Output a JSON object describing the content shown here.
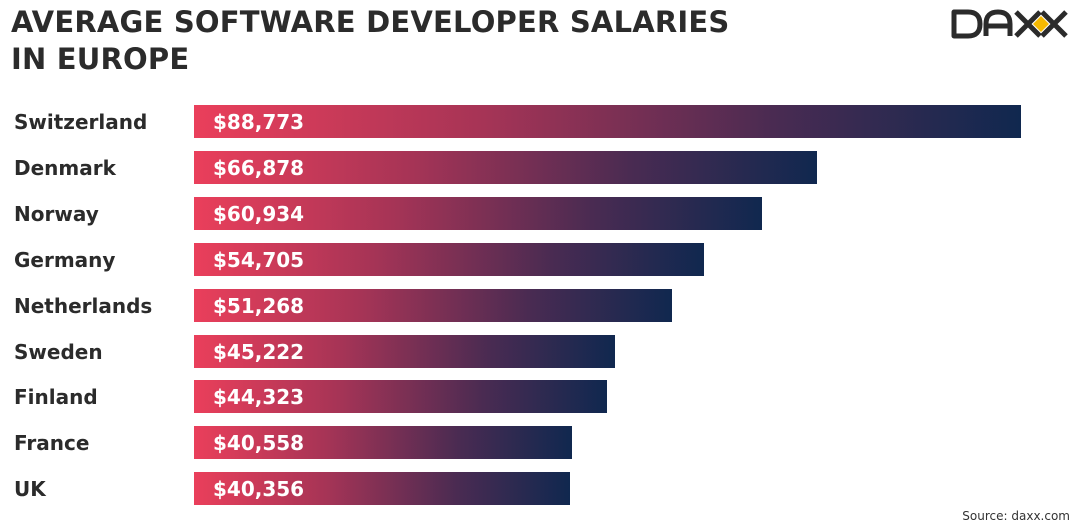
{
  "title_line1": "AVERAGE SOFTWARE DEVELOPER SALARIES",
  "title_line2": "IN EUROPE",
  "logo_text": "DAXX",
  "source": "Source: daxx.com",
  "colors": {
    "bar_start": "#ea3f5b",
    "bar_end": "#10284f",
    "logo_accent": "#f5b800"
  },
  "chart_data": {
    "type": "bar",
    "orientation": "horizontal",
    "title": "AVERAGE SOFTWARE DEVELOPER SALARIES IN EUROPE",
    "categories": [
      "Switzerland",
      "Denmark",
      "Norway",
      "Germany",
      "Netherlands",
      "Sweden",
      "Finland",
      "France",
      "UK"
    ],
    "values": [
      88773,
      66878,
      60934,
      54705,
      51268,
      45222,
      44323,
      40558,
      40356
    ],
    "labels": [
      "$88,773",
      "$66,878",
      "$60,934",
      "$54,705",
      "$51,268",
      "$45,222",
      "$44,323",
      "$40,558",
      "$40,356"
    ],
    "xlabel": "",
    "ylabel": "",
    "xlim": [
      0,
      88773
    ],
    "grid": false
  }
}
